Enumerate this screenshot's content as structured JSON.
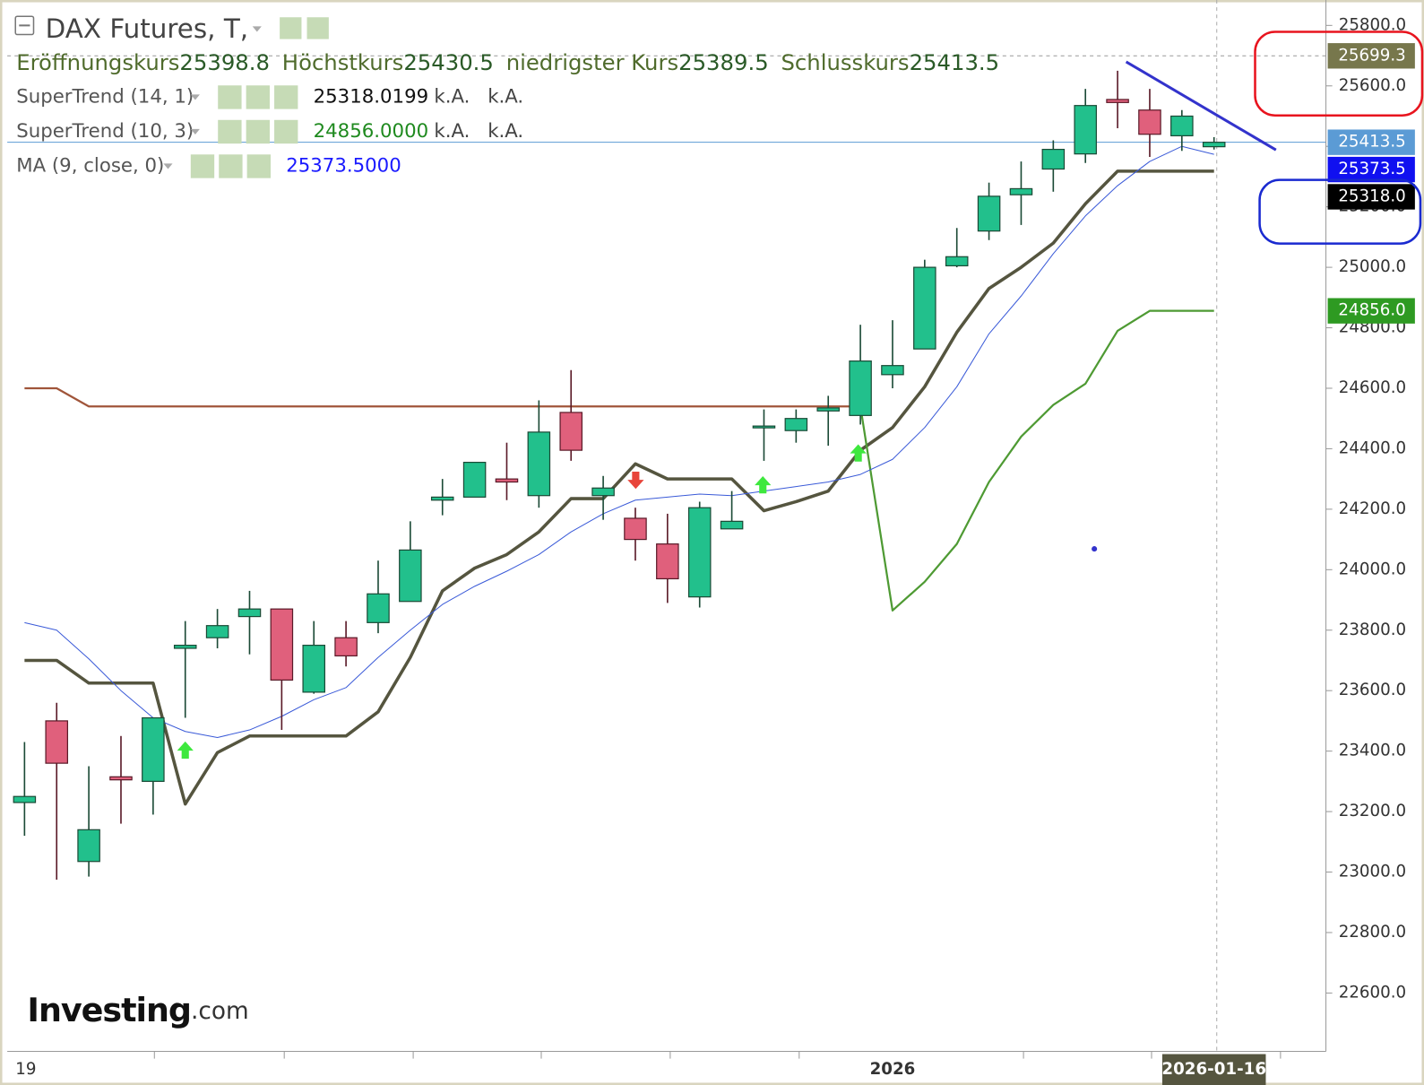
{
  "chart_data": {
    "type": "candlestick",
    "title": "DAX Futures, T,",
    "ohlc_legend": [
      {
        "label": "Eröffnungskurs",
        "value": 25398.8
      },
      {
        "label": "Höchstkurs",
        "value": 25430.5
      },
      {
        "label": "niedrigster Kurs",
        "value": 25389.5
      },
      {
        "label": "Schlusskurs",
        "value": 25413.5
      }
    ],
    "categories": [
      "19",
      null,
      null,
      null,
      null,
      null,
      null,
      null,
      null,
      null,
      null,
      null,
      null,
      null,
      null,
      null,
      null,
      null,
      null,
      null,
      null,
      null,
      null,
      null,
      null,
      null,
      null,
      "2026",
      null,
      null,
      null,
      null,
      null,
      null,
      null,
      null,
      null,
      "2026-01-16"
    ],
    "open": [
      23230,
      23500,
      23035,
      23315,
      23300,
      23740,
      23775,
      23845,
      23870,
      23595,
      23775,
      23825,
      23895,
      24230,
      24240,
      24300,
      24245,
      24520,
      24245,
      24170,
      24085,
      23910,
      24135,
      24470,
      24460,
      24525,
      24510,
      24645,
      24730,
      25005,
      25120,
      25240,
      25325,
      25375,
      25555,
      25520,
      25435,
      25398.8
    ],
    "high": [
      23430,
      23560,
      23350,
      23450,
      23510,
      23830,
      23870,
      23930,
      23870,
      23830,
      23830,
      24030,
      24160,
      24300,
      24355,
      24420,
      24560,
      24660,
      24310,
      24205,
      24185,
      24225,
      24260,
      24530,
      24530,
      24575,
      24810,
      24825,
      25025,
      25130,
      25280,
      25350,
      25420,
      25590,
      25650,
      25590,
      25520,
      25430.5
    ],
    "low": [
      23120,
      22975,
      22985,
      23160,
      23190,
      23510,
      23740,
      23720,
      23470,
      23590,
      23680,
      23790,
      23895,
      24180,
      24240,
      24230,
      24205,
      24360,
      24165,
      24030,
      23890,
      23875,
      24135,
      24360,
      24420,
      24410,
      24480,
      24600,
      24730,
      25000,
      25090,
      25140,
      25250,
      25345,
      25460,
      25365,
      25385,
      25389.5
    ],
    "close": [
      23250,
      23360,
      23140,
      23305,
      23510,
      23750,
      23815,
      23870,
      23635,
      23750,
      23715,
      23920,
      24065,
      24240,
      24355,
      24290,
      24455,
      24395,
      24270,
      24100,
      23970,
      24205,
      24160,
      24475,
      24500,
      24535,
      24690,
      24675,
      25000,
      25035,
      25235,
      25260,
      25390,
      25535,
      25545,
      25440,
      25500,
      25413.5
    ],
    "up_color": "#22c08c",
    "down_color": "#e0607c",
    "overlays": [
      {
        "name": "SuperTrend (14, 1)",
        "legend_value": "25318.0199",
        "legend_extra": [
          "k.A.",
          "k.A."
        ],
        "color": "#55553f",
        "width": 3.5,
        "value_color": "#111111",
        "values": [
          23700,
          23700,
          23625,
          23625,
          23625,
          23225,
          23395,
          23450,
          23450,
          23450,
          23450,
          23530,
          23710,
          23930,
          24005,
          24050,
          24125,
          24235,
          24235,
          24350,
          24300,
          24300,
          24300,
          24195,
          24225,
          24260,
          24395,
          24470,
          24605,
          24785,
          24930,
          25000,
          25080,
          25210,
          25318,
          25318,
          25318,
          25318
        ]
      },
      {
        "name": "SuperTrend (10, 3)",
        "legend_value": "24856.0000",
        "legend_extra": [
          "k.A.",
          "k.A."
        ],
        "color": "#4e9a33",
        "width": 2.2,
        "value_color": "#1f8a1f",
        "point_colors": [
          "#a0553a",
          "#a0553a",
          "#a0553a",
          "#a0553a",
          "#a0553a",
          "#a0553a",
          "#a0553a",
          "#a0553a",
          "#a0553a",
          "#a0553a",
          "#a0553a",
          "#a0553a",
          "#a0553a",
          "#a0553a",
          "#a0553a",
          "#a0553a",
          "#a0553a",
          "#a0553a",
          "#a0553a",
          "#a0553a",
          "#a0553a",
          "#a0553a",
          "#a0553a",
          "#a0553a",
          "#a0553a",
          "#a0553a",
          "#a0553a",
          "#4e9a33",
          "#4e9a33",
          "#4e9a33",
          "#4e9a33",
          "#4e9a33",
          "#4e9a33",
          "#4e9a33",
          "#4e9a33",
          "#4e9a33",
          "#4e9a33",
          "#4e9a33"
        ],
        "values": [
          24600,
          24600,
          24540,
          24540,
          24540,
          24540,
          24540,
          24540,
          24540,
          24540,
          24540,
          24540,
          24540,
          24540,
          24540,
          24540,
          24540,
          24540,
          24540,
          24540,
          24540,
          24540,
          24540,
          24540,
          24540,
          24540,
          24540,
          23865,
          23960,
          24085,
          24290,
          24440,
          24545,
          24615,
          24790,
          24856,
          24856,
          24856
        ]
      },
      {
        "name": "MA (9, close, 0)",
        "legend_value": "25373.5000",
        "color": "#3a5ad8",
        "width": 1,
        "value_color": "#1a1aff",
        "values": [
          23825,
          23800,
          23705,
          23600,
          23510,
          23465,
          23445,
          23470,
          23515,
          23570,
          23610,
          23710,
          23800,
          23885,
          23945,
          23995,
          24050,
          24125,
          24185,
          24230,
          24240,
          24250,
          24245,
          24260,
          24275,
          24290,
          24315,
          24365,
          24470,
          24605,
          24780,
          24905,
          25045,
          25170,
          25270,
          25350,
          25400,
          25373.5
        ]
      }
    ],
    "ylim": [
      22413,
      25884
    ],
    "yticks": [
      {
        "value": 22600,
        "label": "22600.0"
      },
      {
        "value": 22800,
        "label": "22800.0"
      },
      {
        "value": 23000,
        "label": "23000.0"
      },
      {
        "value": 23200,
        "label": "23200.0"
      },
      {
        "value": 23400,
        "label": "23400.0"
      },
      {
        "value": 23600,
        "label": "23600.0"
      },
      {
        "value": 23800,
        "label": "23800.0"
      },
      {
        "value": 24000,
        "label": "24000.0"
      },
      {
        "value": 24200,
        "label": "24200.0"
      },
      {
        "value": 24400,
        "label": "24400.0"
      },
      {
        "value": 24600,
        "label": "24600.0"
      },
      {
        "value": 24800,
        "label": "24800.0"
      },
      {
        "value": 25000,
        "label": "25000.0"
      },
      {
        "value": 25200,
        "label": "25200.0"
      },
      {
        "value": 25400,
        "label": "25400.0"
      },
      {
        "value": 25600,
        "label": "25600.0"
      },
      {
        "value": 25800,
        "label": "25800.0"
      }
    ],
    "price_markers": [
      {
        "value": 25699.3,
        "color": "#77774c",
        "dashed": true
      },
      {
        "value": 25413.5,
        "color": "#5b9bd5",
        "line": true
      },
      {
        "value": 25373.5,
        "color": "#1010f0"
      },
      {
        "value": 25318,
        "label": "25318.0",
        "color": "#000000"
      },
      {
        "value": 24856,
        "label": "24856.0",
        "color": "#2e9a22"
      }
    ],
    "watermark": [
      "Investing",
      ".com"
    ]
  }
}
